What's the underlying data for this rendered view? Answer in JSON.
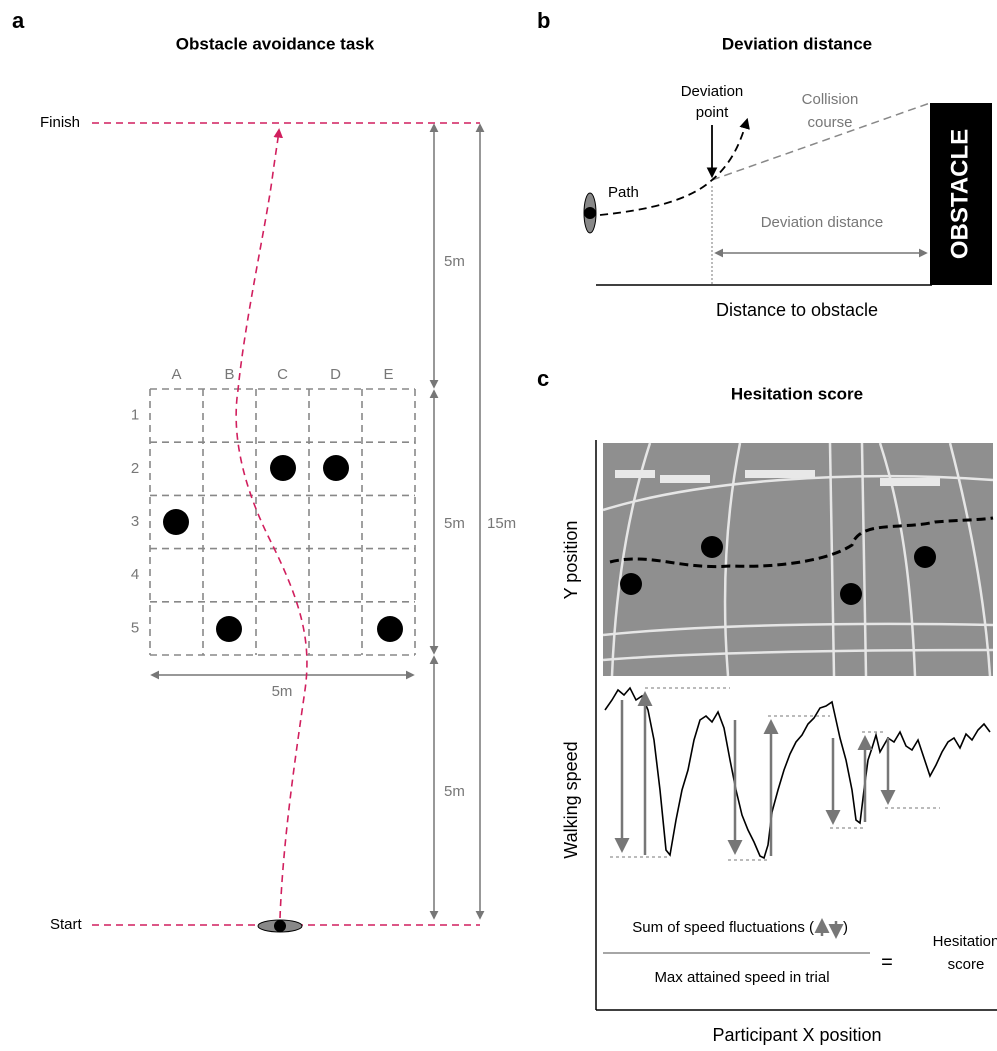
{
  "panel_a": {
    "label": "a",
    "title": "Obstacle avoidance task",
    "finish": "Finish",
    "start": "Start",
    "segments": [
      "5m",
      "5m",
      "5m"
    ],
    "total": "15m",
    "grid_width": "5m",
    "columns": [
      "A",
      "B",
      "C",
      "D",
      "E"
    ],
    "rows": [
      "1",
      "2",
      "3",
      "4",
      "5"
    ]
  },
  "panel_b": {
    "label": "b",
    "title": "Deviation distance",
    "deviation_point": [
      "Deviation",
      "point"
    ],
    "collision_course": [
      "Collision",
      "course"
    ],
    "path": "Path",
    "deviation_distance": "Deviation distance",
    "obstacle": "OBSTACLE",
    "x_axis": "Distance to obstacle"
  },
  "panel_c": {
    "label": "c",
    "title": "Hesitation score",
    "upper_y_axis": "Y position",
    "lower_y_axis": "Walking speed",
    "formula": {
      "numerator_prefix": "Sum of speed fluctuations (",
      "numerator_suffix": ")",
      "denominator": "Max attained speed in trial",
      "equals": "=",
      "result": [
        "Hesitation",
        "score"
      ]
    },
    "x_axis": "Participant X position"
  }
}
